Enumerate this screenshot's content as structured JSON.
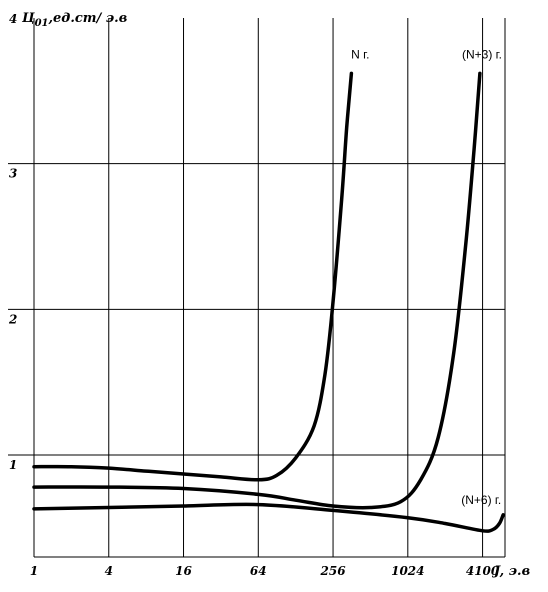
{
  "chart_data": {
    "type": "line",
    "ylabel": "Ц",
    "ylabel_subscript": "01",
    "ylabel_unit": ",ед.ст/ э.в",
    "xlabel": "J, э.в",
    "x_scale": "log2",
    "x_ticks": [
      "1",
      "4",
      "16",
      "64",
      "256",
      "1024",
      "4100"
    ],
    "x_tick_values": [
      1,
      4,
      16,
      64,
      256,
      1024,
      4096
    ],
    "y_ticks": [
      "1",
      "2",
      "3",
      "4"
    ],
    "y_tick_values": [
      1,
      2,
      3,
      4
    ],
    "xlim": [
      1,
      6000
    ],
    "ylim": [
      0.3,
      4
    ],
    "grid": true,
    "series": [
      {
        "name": "N г.",
        "x": [
          1,
          2,
          4,
          8,
          16,
          32,
          64,
          90,
          128,
          180,
          220,
          256,
          300,
          330,
          360
        ],
        "y": [
          0.92,
          0.92,
          0.91,
          0.89,
          0.87,
          0.85,
          0.83,
          0.86,
          0.98,
          1.2,
          1.55,
          2.05,
          2.75,
          3.25,
          3.62
        ]
      },
      {
        "name": "(N+3) г.",
        "x": [
          1,
          4,
          16,
          64,
          128,
          256,
          512,
          900,
          1300,
          1800,
          2400,
          3000,
          3500,
          3900
        ],
        "y": [
          0.78,
          0.78,
          0.77,
          0.73,
          0.69,
          0.65,
          0.64,
          0.68,
          0.83,
          1.12,
          1.7,
          2.45,
          3.1,
          3.62
        ]
      },
      {
        "name": "(N+6) г.",
        "x": [
          1,
          4,
          16,
          64,
          256,
          1024,
          2048,
          4096,
          5000,
          5600,
          6000
        ],
        "y": [
          0.63,
          0.64,
          0.65,
          0.66,
          0.62,
          0.57,
          0.53,
          0.48,
          0.49,
          0.53,
          0.59
        ]
      }
    ]
  }
}
